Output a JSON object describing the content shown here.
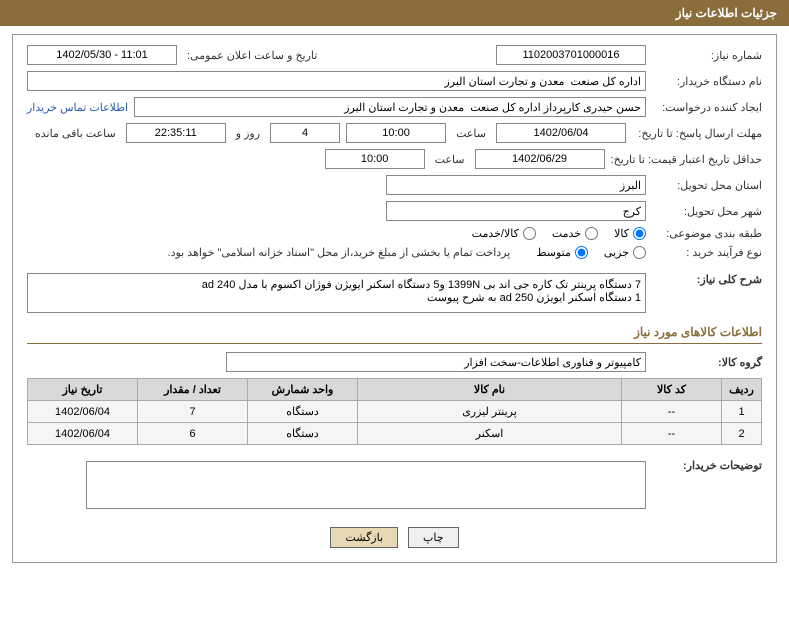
{
  "header": {
    "title": "جزئیات اطلاعات نیاز"
  },
  "fields": {
    "requestNumber": {
      "label": "شماره نیاز:",
      "value": "1102003701000016"
    },
    "announceDate": {
      "label": "تاریخ و ساعت اعلان عمومی:",
      "value": "1402/05/30 - 11:01"
    },
    "buyerOrg": {
      "label": "نام دستگاه خریدار:",
      "value": "اداره کل صنعت  معدن و تجارت استان البرز"
    },
    "requester": {
      "label": "ایجاد کننده درخواست:",
      "value": "حسن حیدری کارپرداز اداره کل صنعت  معدن و تجارت استان البرز"
    },
    "contactLink": "اطلاعات تماس خریدار",
    "responseDeadline": {
      "label": "مهلت ارسال پاسخ: تا تاریخ:",
      "date": "1402/06/04",
      "timeLabel": "ساعت",
      "time": "10:00",
      "days": "4",
      "daysLabel": "روز و",
      "remaining": "22:35:11",
      "remainingLabel": "ساعت باقی مانده"
    },
    "validityDeadline": {
      "label": "حداقل تاریخ اعتبار قیمت: تا تاریخ:",
      "date": "1402/06/29",
      "timeLabel": "ساعت",
      "time": "10:00"
    },
    "province": {
      "label": "استان محل تحویل:",
      "value": "البرز"
    },
    "city": {
      "label": "شهر محل تحویل:",
      "value": "کرج"
    },
    "category": {
      "label": "طبقه بندی موضوعی:",
      "options": {
        "goods": "کالا",
        "service": "خدمت",
        "both": "کالا/خدمت"
      },
      "selected": "goods"
    },
    "purchaseType": {
      "label": "نوع فرآیند خرید :",
      "options": {
        "minor": "جزیی",
        "medium": "متوسط"
      },
      "selected": "medium",
      "note": "پرداخت تمام یا بخشی از مبلغ خرید،از محل \"اسناد خزانه اسلامی\" خواهد بود."
    },
    "summary": {
      "label": "شرح کلی نیاز:",
      "value": "7 دستگاه پرینتر تک کاره جی اند بی 1399N و5 دستگاه اسکنر ایویژن فوژان اکسوم با مدل ad 240\n1 دستگاه اسکنر ایویژن ad 250 به شرح پیوست"
    }
  },
  "goodsSection": {
    "title": "اطلاعات کالاهای مورد نیاز",
    "group": {
      "label": "گروه کالا:",
      "value": "کامپیوتر و فناوری اطلاعات-سخت افزار"
    }
  },
  "table": {
    "headers": [
      "ردیف",
      "کد کالا",
      "نام کالا",
      "واحد شمارش",
      "تعداد / مقدار",
      "تاریخ نیاز"
    ],
    "rows": [
      [
        "1",
        "--",
        "پرینتر لیزری",
        "دستگاه",
        "7",
        "1402/06/04"
      ],
      [
        "2",
        "--",
        "اسکنر",
        "دستگاه",
        "6",
        "1402/06/04"
      ]
    ]
  },
  "buyerNotes": {
    "label": "توضیحات خریدار:"
  },
  "buttons": {
    "print": "چاپ",
    "back": "بازگشت"
  }
}
